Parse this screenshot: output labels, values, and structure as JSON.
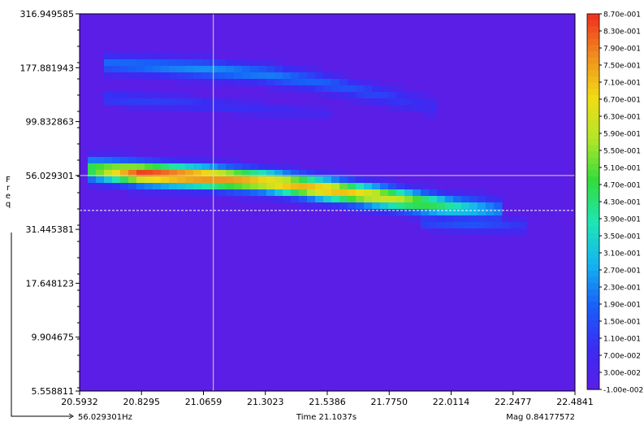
{
  "chart_data": {
    "type": "heatmap",
    "title": "",
    "xlabel": "Time",
    "ylabel": "Freq",
    "x_ticks": [
      "20.5932",
      "20.8295",
      "21.0659",
      "21.3023",
      "21.5386",
      "21.7750",
      "22.0114",
      "22.2477",
      "22.4841"
    ],
    "y_ticks": [
      "316.949585",
      "177.881943",
      "99.832863",
      "56.029301",
      "31.445381",
      "17.648123",
      "9.904675",
      "5.558811"
    ],
    "y_scale": "log",
    "xlim": [
      20.5932,
      22.4841
    ],
    "ylim": [
      5.558811,
      316.949585
    ],
    "colorbar": {
      "labels": [
        "8.70e-001",
        "8.30e-001",
        "7.90e-001",
        "7.50e-001",
        "7.10e-001",
        "6.70e-001",
        "6.30e-001",
        "5.90e-001",
        "5.50e-001",
        "5.10e-001",
        "4.70e-001",
        "4.30e-001",
        "3.90e-001",
        "3.50e-001",
        "3.10e-001",
        "2.70e-001",
        "2.30e-001",
        "1.90e-001",
        "1.50e-001",
        "1.10e-001",
        "7.00e-002",
        "3.00e-002",
        "-1.00e-002"
      ],
      "min": -0.01,
      "max": 0.87,
      "colors": [
        "#5a1ee6",
        "#3a2cf4",
        "#1860f8",
        "#14b4f0",
        "#1ee6b4",
        "#32dc3c",
        "#b4e628",
        "#f0dc14",
        "#f08c1e",
        "#f02d1e"
      ]
    },
    "cursor": {
      "time": 21.1037,
      "freq": 56.029301
    },
    "marker_freq": 38.5,
    "readout": {
      "freq_label": "56.029301Hz",
      "time_label": "Time 21.1037s",
      "mag_label": "Mag 0.84177572"
    },
    "ridges": [
      {
        "points": [
          [
            20.61,
            60
          ],
          [
            20.83,
            57
          ],
          [
            21.07,
            55
          ],
          [
            21.3,
            52.5
          ],
          [
            21.54,
            48
          ],
          [
            21.78,
            44
          ],
          [
            22.01,
            40
          ],
          [
            22.2,
            38.5
          ]
        ],
        "magnitude": [
          0.45,
          0.86,
          0.8,
          0.7,
          0.74,
          0.62,
          0.4,
          0.22
        ],
        "width_oct": 0.16
      },
      {
        "points": [
          [
            20.7,
            185
          ],
          [
            21.07,
            175
          ],
          [
            21.3,
            166
          ],
          [
            21.54,
            150
          ],
          [
            21.78,
            130
          ],
          [
            21.95,
            116
          ]
        ],
        "magnitude": [
          0.2,
          0.24,
          0.22,
          0.18,
          0.12,
          0.07
        ],
        "width_oct": 0.14
      },
      {
        "points": [
          [
            20.7,
            128
          ],
          [
            21.07,
            120
          ],
          [
            21.3,
            114
          ],
          [
            21.54,
            108
          ]
        ],
        "magnitude": [
          0.13,
          0.11,
          0.08,
          0.05
        ],
        "width_oct": 0.1
      },
      {
        "points": [
          [
            21.9,
            34
          ],
          [
            22.1,
            33
          ],
          [
            22.3,
            32.5
          ]
        ],
        "magnitude": [
          0.15,
          0.16,
          0.1
        ],
        "width_oct": 0.1
      }
    ]
  }
}
